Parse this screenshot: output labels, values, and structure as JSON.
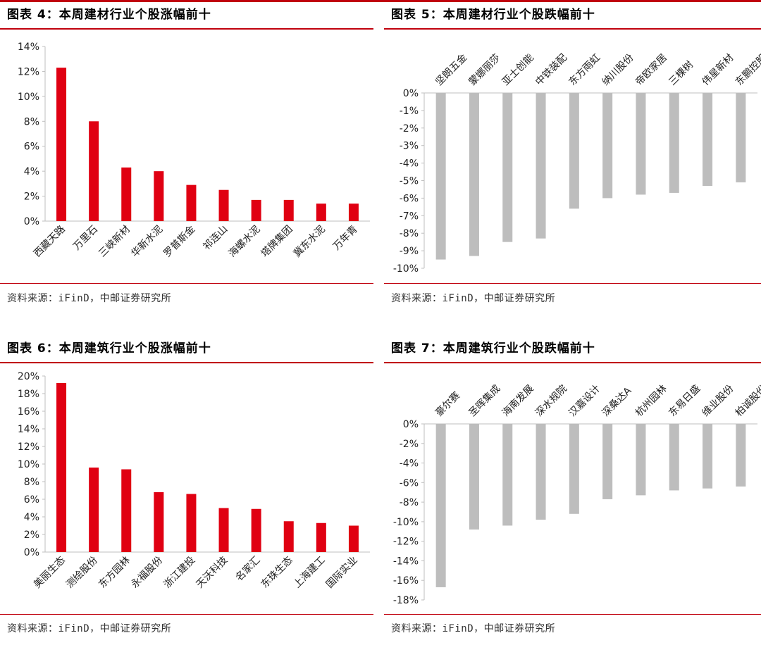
{
  "colors": {
    "accent": "#C0000D",
    "positive_bar": "#E00012",
    "negative_bar": "#BDBDBD",
    "axis": "#BFBFBF"
  },
  "charts": [
    {
      "title": "图表 4：本周建材行业个股涨幅前十",
      "source": "资料来源：iFinD，中邮证券研究所"
    },
    {
      "title": "图表 5：本周建材行业个股跌幅前十",
      "source": "资料来源：iFinD，中邮证券研究所"
    },
    {
      "title": "图表 6：本周建筑行业个股涨幅前十",
      "source": "资料来源：iFinD，中邮证券研究所"
    },
    {
      "title": "图表 7：本周建筑行业个股跌幅前十",
      "source": "资料来源：iFinD，中邮证券研究所"
    }
  ],
  "chart_data": [
    {
      "type": "bar",
      "title": "",
      "categories": [
        "西藏天路",
        "万里石",
        "三峡新材",
        "华新水泥",
        "罗普斯金",
        "祁连山",
        "海螺水泥",
        "塔牌集团",
        "冀东水泥",
        "万年青"
      ],
      "values": [
        12.3,
        8.0,
        4.3,
        4.0,
        2.9,
        2.5,
        1.7,
        1.7,
        1.4,
        1.4
      ],
      "ylim": [
        0,
        14
      ],
      "yticks": [
        "0%",
        "2%",
        "4%",
        "6%",
        "8%",
        "10%",
        "12%",
        "14%"
      ],
      "ytick_values": [
        0,
        2,
        4,
        6,
        8,
        10,
        12,
        14
      ],
      "label_position": "bottom",
      "color": "#E00012"
    },
    {
      "type": "bar",
      "title": "",
      "categories": [
        "坚朗五金",
        "蒙娜丽莎",
        "亚士创能",
        "中铁装配",
        "东方雨虹",
        "纳川股份",
        "帝欧家居",
        "三棵树",
        "伟星新材",
        "东鹏控股"
      ],
      "values": [
        -9.5,
        -9.3,
        -8.5,
        -8.3,
        -6.6,
        -6.0,
        -5.8,
        -5.7,
        -5.3,
        -5.1
      ],
      "ylim": [
        -10,
        0
      ],
      "yticks": [
        "0%",
        "-1%",
        "-2%",
        "-3%",
        "-4%",
        "-5%",
        "-6%",
        "-7%",
        "-8%",
        "-9%",
        "-10%"
      ],
      "ytick_values": [
        0,
        -1,
        -2,
        -3,
        -4,
        -5,
        -6,
        -7,
        -8,
        -9,
        -10
      ],
      "label_position": "top",
      "color": "#BDBDBD"
    },
    {
      "type": "bar",
      "title": "",
      "categories": [
        "美丽生态",
        "测绘股份",
        "东方园林",
        "永福股份",
        "浙江建投",
        "天沃科技",
        "名家汇",
        "东珠生态",
        "上海建工",
        "国际实业"
      ],
      "values": [
        19.2,
        9.6,
        9.4,
        6.8,
        6.6,
        5.0,
        4.9,
        3.5,
        3.3,
        3.0
      ],
      "ylim": [
        0,
        20
      ],
      "yticks": [
        "0%",
        "2%",
        "4%",
        "6%",
        "8%",
        "10%",
        "12%",
        "14%",
        "16%",
        "18%",
        "20%"
      ],
      "ytick_values": [
        0,
        2,
        4,
        6,
        8,
        10,
        12,
        14,
        16,
        18,
        20
      ],
      "label_position": "bottom",
      "color": "#E00012"
    },
    {
      "type": "bar",
      "title": "",
      "categories": [
        "豪尔赛",
        "圣晖集成",
        "海南发展",
        "深水规院",
        "汉嘉设计",
        "深桑达A",
        "杭州园林",
        "东易日盛",
        "维业股份",
        "柏诚股份"
      ],
      "values": [
        -16.7,
        -10.8,
        -10.4,
        -9.8,
        -9.2,
        -7.7,
        -7.3,
        -6.8,
        -6.6,
        -6.4
      ],
      "ylim": [
        -18,
        0
      ],
      "yticks": [
        "0%",
        "-2%",
        "-4%",
        "-6%",
        "-8%",
        "-10%",
        "-12%",
        "-14%",
        "-16%",
        "-18%"
      ],
      "ytick_values": [
        0,
        -2,
        -4,
        -6,
        -8,
        -10,
        -12,
        -14,
        -16,
        -18
      ],
      "label_position": "top",
      "color": "#BDBDBD"
    }
  ]
}
